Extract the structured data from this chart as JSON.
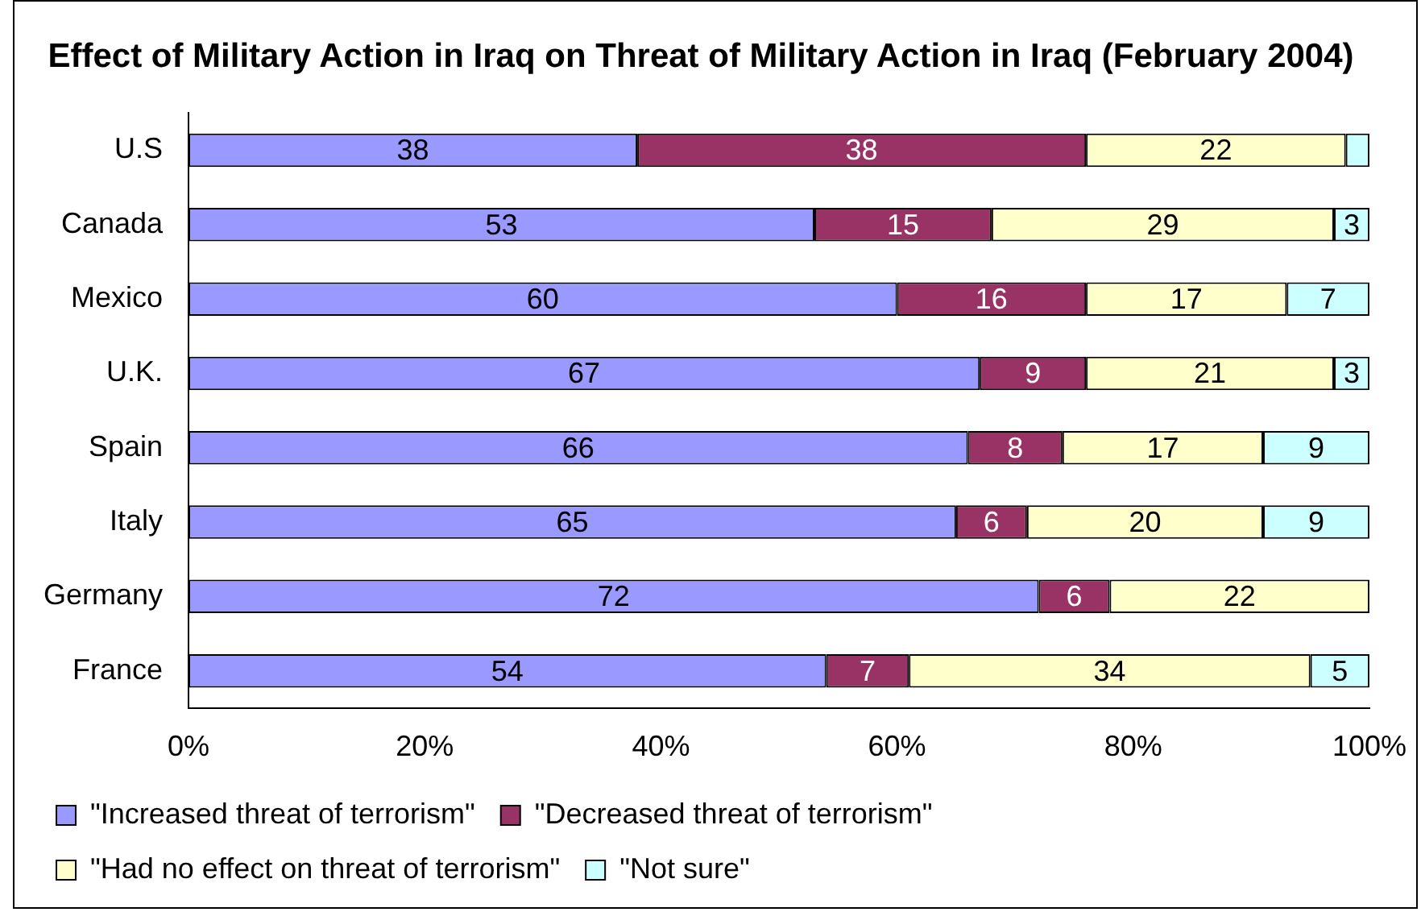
{
  "chart_data": {
    "type": "bar",
    "orientation": "horizontal",
    "stacked": true,
    "title": "Effect of Military Action in Iraq on Threat of Military Action in Iraq (February 2004)",
    "categories": [
      "U.S",
      "Canada",
      "Mexico",
      "U.K.",
      "Spain",
      "Italy",
      "Germany",
      "France"
    ],
    "series": [
      {
        "name": "\"Increased threat of terrorism\"",
        "color": "#9999ff",
        "values": [
          38,
          53,
          60,
          67,
          66,
          65,
          72,
          54
        ],
        "value_labels": [
          "38",
          "53",
          "60",
          "67",
          "66",
          "65",
          "72",
          "54"
        ]
      },
      {
        "name": "\"Decreased threat of terrorism\"",
        "color": "#993366",
        "values": [
          38,
          15,
          16,
          9,
          8,
          6,
          6,
          7
        ],
        "value_labels": [
          "38",
          "15",
          "16",
          "9",
          "8",
          "6",
          "6",
          "7"
        ]
      },
      {
        "name": "\"Had no effect on threat of terrorism\"",
        "color": "#ffffcc",
        "values": [
          22,
          29,
          17,
          21,
          17,
          20,
          22,
          34
        ],
        "value_labels": [
          "22",
          "29",
          "17",
          "21",
          "17",
          "20",
          "22",
          "34"
        ]
      },
      {
        "name": "\"Not sure\"",
        "color": "#ccffff",
        "values": [
          2,
          3,
          7,
          3,
          9,
          9,
          null,
          5
        ],
        "value_labels": [
          null,
          "3",
          "7",
          "3",
          "9",
          "9",
          null,
          "5"
        ]
      }
    ],
    "xlim": [
      0,
      100
    ],
    "xticks": [
      {
        "value": 0,
        "label": "0%"
      },
      {
        "value": 20,
        "label": "20%"
      },
      {
        "value": 40,
        "label": "40%"
      },
      {
        "value": 60,
        "label": "60%"
      },
      {
        "value": 80,
        "label": "80%"
      },
      {
        "value": 100,
        "label": "100%"
      }
    ],
    "grid": false,
    "legend": "bottom"
  }
}
